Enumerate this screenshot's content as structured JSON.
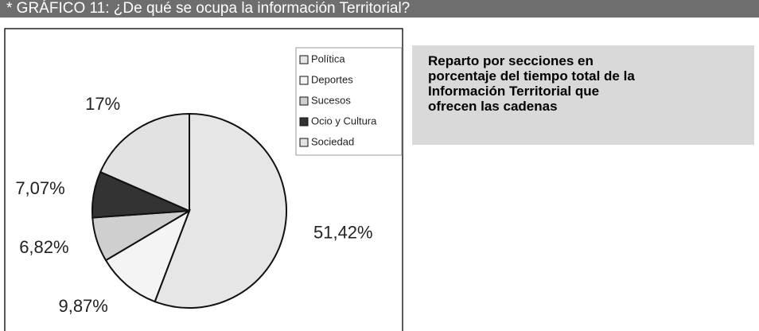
{
  "chart_data": {
    "type": "pie",
    "title": "* GRÁFICO 11: ¿De qué se ocupa la información Territorial?",
    "subtitle": "Reparto por secciones en porcentaje del tiempo total de la Información Territorial que ofrecen las cadenas",
    "categories": [
      "Política",
      "Deportes",
      "Sucesos",
      "Ocio y Cultura",
      "Sociedad"
    ],
    "values": [
      51.42,
      9.87,
      6.82,
      7.07,
      17
    ],
    "value_labels": [
      "51,42%",
      "9,87%",
      "6,82%",
      "7,07%",
      "17%"
    ],
    "colors": [
      "#e6e6e6",
      "#f4f4f4",
      "#cfcfcf",
      "#333333",
      "#e2e2e2"
    ],
    "legend": "top-right"
  }
}
